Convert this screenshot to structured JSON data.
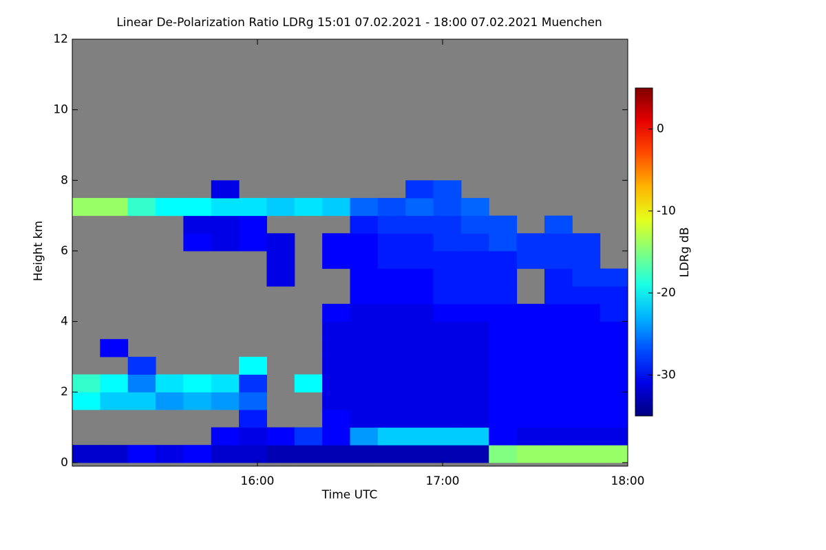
{
  "chart_data": {
    "type": "heatmap",
    "title": "Linear De-Polarization Ratio LDRg   15:01 07.02.2021 - 18:00 07.02.2021 Muenchen",
    "x_label": "Time UTC",
    "y_label": "Height km",
    "colorbar_label": "LDRg dB",
    "colormap": "jet",
    "no_data_color": "#808080",
    "xlim": [
      15.0,
      18.0
    ],
    "xticks": [
      {
        "value": 16,
        "label": "16:00"
      },
      {
        "value": 17,
        "label": "17:00"
      },
      {
        "value": 18,
        "label": "18:00"
      }
    ],
    "ylim": [
      -0.1,
      12
    ],
    "yticks": [
      0,
      2,
      4,
      6,
      8,
      10,
      12
    ],
    "zlim": [
      -35,
      5
    ],
    "zticks": [
      0,
      -10,
      -20,
      -30
    ],
    "x_bins": [
      15.0,
      15.15,
      15.3,
      15.45,
      15.6,
      15.75,
      15.9,
      16.05,
      16.2,
      16.35,
      16.5,
      16.65,
      16.8,
      16.95,
      17.1,
      17.25,
      17.4,
      17.55,
      17.7,
      17.85,
      18.0
    ],
    "y_bins": [
      0,
      0.5,
      1,
      1.5,
      2,
      2.5,
      3,
      3.5,
      4,
      4.5,
      5,
      5.5,
      6,
      6.5,
      7,
      7.5,
      8
    ],
    "values": [
      [
        -32,
        -32,
        -30,
        -31,
        -30,
        -32,
        -32,
        -33,
        -33,
        -33,
        -33,
        -33,
        -33,
        -33,
        -33,
        -15,
        -14,
        -14,
        -14,
        -14
      ],
      [
        null,
        null,
        null,
        null,
        null,
        -30,
        -31,
        -30,
        -28,
        -30,
        -24,
        -22,
        -22,
        -22,
        -22,
        -30,
        -31,
        -31,
        -31,
        -31
      ],
      [
        null,
        null,
        null,
        null,
        null,
        null,
        -29,
        null,
        null,
        -30,
        -31,
        -31,
        -31,
        -31,
        -31,
        -30,
        -30,
        -30,
        -30,
        -30
      ],
      [
        -20,
        -22,
        -22,
        -24,
        -23,
        -24,
        -26,
        null,
        null,
        -31,
        -31,
        -31,
        -31,
        -31,
        -31,
        -30,
        -30,
        -30,
        -30,
        -30
      ],
      [
        -18,
        -20,
        -25,
        -21,
        -20,
        -21,
        -28,
        null,
        -20,
        -31,
        -31,
        -31,
        -31,
        -31,
        -31,
        -30,
        -30,
        -30,
        -30,
        -30
      ],
      [
        null,
        null,
        -28,
        null,
        null,
        null,
        -20,
        null,
        null,
        -31,
        -31,
        -31,
        -31,
        -31,
        -31,
        -30,
        -30,
        -30,
        -30,
        -30
      ],
      [
        null,
        -30,
        null,
        null,
        null,
        null,
        null,
        null,
        null,
        -31,
        -31,
        -31,
        -31,
        -31,
        -31,
        -30,
        -30,
        -30,
        -30,
        -30
      ],
      [
        null,
        null,
        null,
        null,
        null,
        null,
        null,
        null,
        null,
        -31,
        -31,
        -31,
        -31,
        -31,
        -31,
        -30,
        -30,
        -30,
        -30,
        -30
      ],
      [
        null,
        null,
        null,
        null,
        null,
        null,
        null,
        null,
        null,
        -30,
        -31,
        -31,
        -31,
        -30,
        -30,
        -30,
        -30,
        -30,
        -30,
        -29
      ],
      [
        null,
        null,
        null,
        null,
        null,
        null,
        null,
        null,
        null,
        null,
        -30,
        -30,
        -30,
        -29,
        -29,
        -29,
        null,
        -29,
        -29,
        -29
      ],
      [
        null,
        null,
        null,
        null,
        null,
        null,
        null,
        -31,
        null,
        null,
        -30,
        -30,
        -30,
        -29,
        -29,
        -29,
        null,
        -29,
        -28,
        -28
      ],
      [
        null,
        null,
        null,
        null,
        null,
        null,
        null,
        -31,
        null,
        -30,
        -30,
        -29,
        -29,
        -29,
        -29,
        -29,
        -28,
        -28,
        -28,
        null
      ],
      [
        null,
        null,
        null,
        null,
        -30,
        -31,
        -30,
        -31,
        null,
        -30,
        -30,
        -29,
        -29,
        -28,
        -28,
        -27,
        -28,
        -28,
        -28,
        null
      ],
      [
        null,
        null,
        null,
        null,
        -31,
        -31,
        -30,
        null,
        null,
        null,
        -29,
        -28,
        -28,
        -28,
        -27,
        -27,
        null,
        -27,
        null,
        null
      ],
      [
        -14,
        -14,
        -18,
        -20,
        -20,
        -21,
        -21,
        -22,
        -21,
        -22,
        -26,
        -27,
        -26,
        -27,
        -26,
        null,
        null,
        null,
        null,
        null
      ],
      [
        null,
        null,
        null,
        null,
        null,
        -31,
        null,
        null,
        null,
        null,
        null,
        null,
        -28,
        -27,
        null,
        null,
        null,
        null,
        null,
        null
      ]
    ]
  }
}
